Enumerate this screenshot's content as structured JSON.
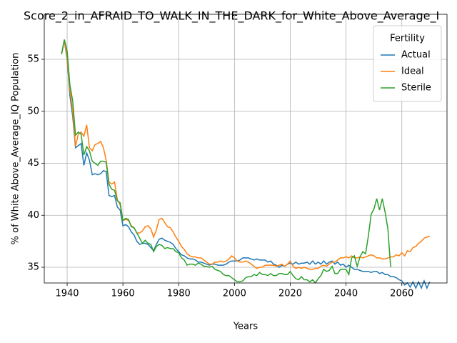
{
  "chart_data": {
    "type": "line",
    "title": "Score_2_in_AFRAID_TO_WALK_IN_THE_DARK_for_White_Above_Average_I",
    "xlabel": "Years",
    "ylabel": "% of White Above_Average_IQ Population",
    "x": [
      1938,
      1939,
      1940,
      1941,
      1942,
      1943,
      1944,
      1945,
      1946,
      1947,
      1948,
      1949,
      1950,
      1951,
      1952,
      1953,
      1954,
      1955,
      1956,
      1957,
      1958,
      1959,
      1960,
      1961,
      1962,
      1963,
      1964,
      1965,
      1966,
      1967,
      1968,
      1969,
      1970,
      1971,
      1972,
      1973,
      1974,
      1975,
      1976,
      1977,
      1978,
      1979,
      1980,
      1981,
      1982,
      1983,
      1984,
      1985,
      1986,
      1987,
      1988,
      1989,
      1990,
      1991,
      1992,
      1993,
      1994,
      1995,
      1996,
      1997,
      1998,
      1999,
      2000,
      2001,
      2002,
      2003,
      2004,
      2005,
      2006,
      2007,
      2008,
      2009,
      2010,
      2011,
      2012,
      2013,
      2014,
      2015,
      2016,
      2017,
      2018,
      2019,
      2020,
      2021,
      2022,
      2023,
      2024,
      2025,
      2026,
      2027,
      2028,
      2029,
      2030,
      2031,
      2032,
      2033,
      2034,
      2035,
      2036,
      2037,
      2038,
      2039,
      2040,
      2041,
      2042,
      2043,
      2044,
      2045,
      2046,
      2047,
      2048,
      2049,
      2050,
      2051,
      2052,
      2053,
      2054,
      2055,
      2056,
      2057,
      2058,
      2059,
      2060,
      2061,
      2062,
      2063,
      2064,
      2065,
      2066,
      2067,
      2068,
      2069,
      2070
    ],
    "series": [
      {
        "name": "Actual",
        "color": "#1f77b4",
        "values": [
          55.5,
          56.8,
          55,
          51.5,
          49.5,
          46.5,
          46.7,
          46.9,
          44.8,
          46.0,
          45.3,
          43.9,
          44.0,
          43.9,
          44.0,
          44.3,
          44.2,
          41.9,
          41.8,
          41.9,
          40.8,
          40.5,
          39.0,
          39.1,
          38.9,
          38.4,
          38.1,
          37.5,
          37.2,
          37.3,
          37.3,
          37.2,
          36.9,
          36.6,
          37.2,
          37.7,
          37.8,
          37.6,
          37.5,
          37.4,
          37.2,
          36.8,
          36.5,
          36.2,
          36.1,
          35.9,
          35.8,
          35.8,
          35.7,
          35.5,
          35.5,
          35.4,
          35.3,
          35.2,
          35.3,
          35.3,
          35.2,
          35.2,
          35.2,
          35.3,
          35.5,
          35.6,
          35.6,
          35.6,
          35.7,
          35.9,
          35.9,
          35.9,
          35.8,
          35.7,
          35.8,
          35.7,
          35.7,
          35.7,
          35.5,
          35.6,
          35.3,
          35.2,
          35.0,
          35.2,
          35.1,
          35.3,
          35.4,
          35.3,
          35.5,
          35.3,
          35.4,
          35.4,
          35.5,
          35.3,
          35.6,
          35.3,
          35.5,
          35.3,
          35.6,
          35.3,
          35.5,
          35.6,
          35.3,
          35.5,
          35.2,
          35.3,
          35.0,
          35.2,
          35.0,
          34.8,
          34.8,
          34.7,
          34.6,
          34.6,
          34.6,
          34.5,
          34.6,
          34.6,
          34.4,
          34.5,
          34.3,
          34.3,
          34.1,
          34.1,
          34.0,
          33.8,
          33.7,
          33.3,
          33.5,
          33.1,
          33.6,
          33.0,
          33.6,
          33.0,
          33.7,
          33.0,
          33.6
        ]
      },
      {
        "name": "Ideal",
        "color": "#ff7f0e",
        "values": [
          55.5,
          56.8,
          55.2,
          52,
          50.0,
          46.6,
          47.8,
          48.0,
          47.6,
          48.7,
          46.5,
          46.2,
          46.8,
          46.9,
          47.1,
          46.5,
          45.3,
          43.2,
          43.0,
          43.2,
          41.5,
          41.0,
          39.5,
          39.6,
          39.5,
          39.0,
          38.8,
          38.3,
          38.3,
          38.5,
          38.9,
          39.0,
          38.7,
          37.9,
          38.6,
          39.6,
          39.7,
          39.3,
          38.9,
          38.8,
          38.4,
          37.9,
          37.5,
          37.0,
          36.7,
          36.3,
          36.1,
          36.0,
          36.0,
          35.9,
          35.9,
          35.7,
          35.5,
          35.3,
          35.3,
          35.5,
          35.5,
          35.6,
          35.5,
          35.6,
          35.8,
          36.1,
          35.9,
          35.6,
          35.5,
          35.5,
          35.6,
          35.5,
          35.3,
          35.1,
          34.9,
          35.0,
          35.0,
          35.2,
          35.2,
          35.2,
          35.2,
          35.1,
          35.2,
          35.3,
          35.1,
          35.3,
          35.6,
          35.1,
          34.9,
          35.0,
          34.9,
          35.0,
          34.9,
          34.8,
          34.8,
          34.9,
          34.9,
          35.1,
          35.2,
          35.1,
          35.3,
          35.5,
          35.5,
          35.7,
          35.9,
          35.9,
          36.0,
          35.9,
          36.1,
          35.9,
          35.9,
          36.0,
          35.9,
          36.0,
          36.1,
          36.2,
          36.1,
          35.9,
          35.9,
          35.8,
          35.8,
          35.9,
          36.0,
          36.0,
          36.2,
          36.1,
          36.4,
          36.1,
          36.6,
          36.5,
          36.9,
          37.0,
          37.3,
          37.5,
          37.8,
          37.9,
          38.0
        ]
      },
      {
        "name": "Sterile",
        "color": "#2ca02c",
        "values": [
          55.5,
          56.9,
          55.8,
          52.5,
          51.0,
          47.7,
          48.0,
          47.8,
          45.8,
          46.6,
          46.2,
          45.2,
          45.0,
          44.8,
          45.2,
          45.2,
          45.1,
          43.0,
          42.5,
          42.4,
          41.4,
          41.2,
          39.5,
          39.7,
          39.6,
          38.9,
          38.8,
          38.3,
          37.8,
          37.3,
          37.6,
          37.3,
          37.2,
          36.5,
          37.0,
          37.2,
          37.1,
          36.8,
          36.9,
          36.8,
          36.8,
          36.5,
          36.4,
          35.9,
          35.7,
          35.2,
          35.3,
          35.3,
          35.2,
          35.4,
          35.3,
          35.1,
          35.1,
          35.0,
          35.1,
          34.8,
          34.7,
          34.6,
          34.3,
          34.2,
          34.2,
          34.0,
          33.8,
          33.6,
          33.6,
          33.7,
          34.0,
          34.1,
          34.1,
          34.3,
          34.2,
          34.5,
          34.3,
          34.3,
          34.2,
          34.4,
          34.2,
          34.2,
          34.4,
          34.4,
          34.3,
          34.3,
          34.6,
          34.2,
          33.9,
          33.8,
          34.1,
          33.8,
          33.8,
          33.6,
          33.8,
          33.5,
          33.9,
          34.2,
          34.8,
          34.6,
          34.7,
          35.1,
          34.4,
          34.4,
          34.8,
          34.8,
          34.8,
          34.3,
          35.9,
          36.1,
          35.1,
          36.0,
          36.5,
          36.3,
          38.0,
          40.1,
          40.6,
          41.6,
          40.5,
          41.6,
          40.3,
          38.7,
          35.0,
          null,
          null,
          null,
          null,
          null,
          null,
          null,
          null,
          null,
          null,
          null,
          null,
          null,
          null
        ]
      }
    ],
    "xlim": [
      1931.8,
      2076.2
    ],
    "ylim": [
      33.49,
      59.33
    ],
    "xticks": [
      1940,
      1960,
      1980,
      2000,
      2020,
      2040,
      2060
    ],
    "yticks": [
      35,
      40,
      45,
      50,
      55
    ],
    "grid": true,
    "legend": {
      "title": "Fertility",
      "position": "upper right"
    }
  }
}
